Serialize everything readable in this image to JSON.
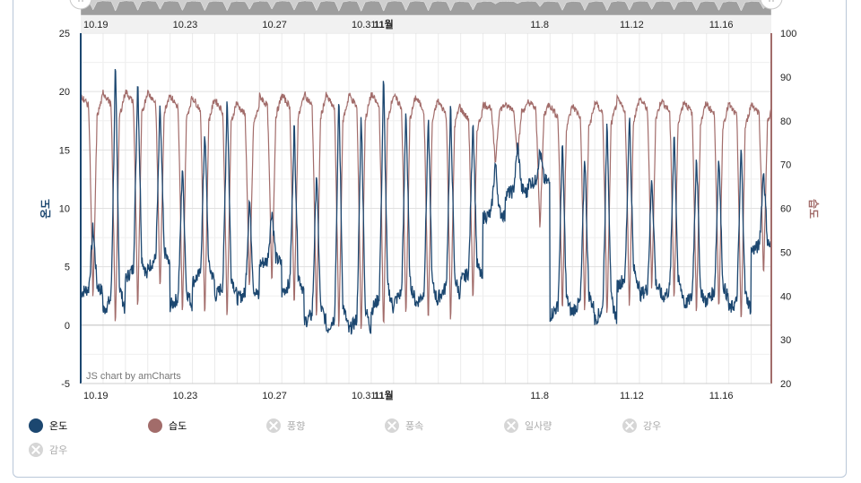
{
  "chart_data": {
    "type": "line",
    "title": "",
    "credit": "JS chart by amCharts",
    "x_tick_labels": [
      {
        "label": "10.19",
        "day": 0,
        "bold": false
      },
      {
        "label": "10.23",
        "day": 4,
        "bold": false
      },
      {
        "label": "10.27",
        "day": 8,
        "bold": false
      },
      {
        "label": "10.31",
        "day": 12,
        "bold": false
      },
      {
        "label": "11월",
        "day": 13,
        "bold": true
      },
      {
        "label": "11.8",
        "day": 20,
        "bold": false
      },
      {
        "label": "11.12",
        "day": 24,
        "bold": false
      },
      {
        "label": "11.16",
        "day": 28,
        "bold": false
      }
    ],
    "x_range_days": [
      0,
      30.9
    ],
    "y_left": {
      "label": "온도",
      "range": [
        -5,
        25
      ],
      "ticks": [
        "-5",
        "0",
        "5",
        "10",
        "15",
        "20",
        "25"
      ],
      "color": "#1c4770"
    },
    "y_right": {
      "label": "습도",
      "range": [
        20,
        100
      ],
      "ticks": [
        "20",
        "30",
        "40",
        "50",
        "60",
        "70",
        "80",
        "90",
        "100"
      ],
      "color": "#a26c6a"
    },
    "grid": true,
    "series": [
      {
        "name": "온도",
        "axis": "left",
        "color": "#1c4770",
        "day_lows": [
          2.5,
          0.0,
          3.0,
          4.2,
          1.0,
          3.0,
          1.5,
          1.8,
          5.0,
          2.0,
          -0.5,
          -1.5,
          -1.5,
          0.2,
          1.0,
          1.0,
          1.5,
          3.0,
          9.0,
          11.0,
          12.0,
          0.0,
          0.5,
          -0.5,
          2.5,
          2.0,
          1.5,
          1.0,
          1.5,
          0.5,
          6.0
        ],
        "day_highs": [
          8.5,
          22.5,
          21.5,
          19.0,
          14.0,
          17.0,
          20.0,
          11.0,
          10.0,
          17.5,
          13.5,
          20.0,
          18.5,
          21.5,
          19.0,
          18.0,
          19.0,
          18.0,
          14.0,
          15.5,
          15.0,
          16.0,
          15.0,
          18.0,
          18.5,
          13.0,
          17.0,
          15.0,
          15.0,
          15.5,
          13.5
        ]
      },
      {
        "name": "습도",
        "axis": "right",
        "color": "#a26c6a",
        "day_highs": [
          88.5,
          89.5,
          89.5,
          89.0,
          88.5,
          88.0,
          87.5,
          86.0,
          88.0,
          88.5,
          89.0,
          88.5,
          89.0,
          89.0,
          88.5,
          88.0,
          87.0,
          85.0,
          84.5,
          84.0,
          86.0,
          86.0,
          86.0,
          87.0,
          87.5,
          87.5,
          87.0,
          87.0,
          86.5,
          86.5,
          86.0
        ],
        "day_lows": [
          38.0,
          32.0,
          36.0,
          40.0,
          34.0,
          34.0,
          34.0,
          40.0,
          42.0,
          36.0,
          33.0,
          31.0,
          30.0,
          31.0,
          34.0,
          33.0,
          33.0,
          38.0,
          70.0,
          72.0,
          55.0,
          35.0,
          35.0,
          34.0,
          36.0,
          40.0,
          38.0,
          35.0,
          35.0,
          32.0,
          44.0
        ]
      }
    ],
    "legend": {
      "placement": "bottom",
      "items": [
        {
          "name": "온도",
          "color": "#1c4770",
          "enabled": true
        },
        {
          "name": "습도",
          "color": "#a26c6a",
          "enabled": true
        },
        {
          "name": "풍향",
          "color": "#d6d6d6",
          "enabled": false
        },
        {
          "name": "풍속",
          "color": "#d6d6d6",
          "enabled": false
        },
        {
          "name": "일사량",
          "color": "#d6d6d6",
          "enabled": false
        },
        {
          "name": "강우",
          "color": "#d6d6d6",
          "enabled": false
        },
        {
          "name": "감우",
          "color": "#d6d6d6",
          "enabled": false
        }
      ]
    },
    "scrollbar": {
      "present": true
    }
  }
}
